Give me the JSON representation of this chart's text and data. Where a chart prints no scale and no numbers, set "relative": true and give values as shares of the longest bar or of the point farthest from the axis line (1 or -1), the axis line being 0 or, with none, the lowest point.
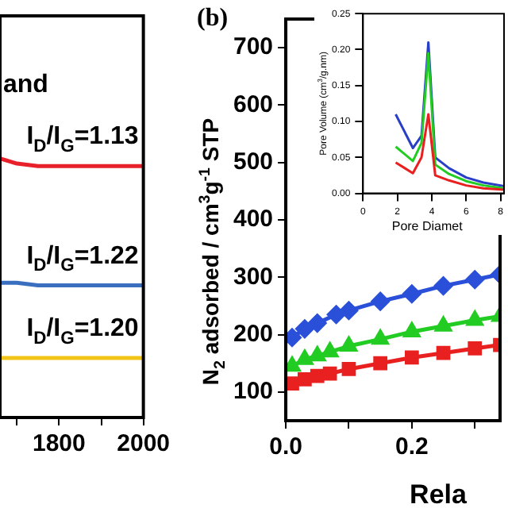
{
  "chart_data": [
    {
      "type": "line",
      "relative": true,
      "x": [
        1660,
        1700,
        1750,
        1800,
        1900,
        2000
      ],
      "xlim": [
        1660,
        2000
      ],
      "xticks": [
        {
          "value": 1700,
          "label": null
        },
        1800,
        {
          "value": 1900,
          "label": null
        },
        2000
      ],
      "tick_labels": "x",
      "grid": false,
      "legend": false,
      "marker": "none",
      "series": [
        {
          "color": "#e8202a",
          "values": [
            1,
            0.98,
            0.97,
            0.97,
            0.97,
            0.97
          ]
        },
        {
          "color": "#3a6fc0",
          "values": [
            0.52,
            0.52,
            0.51,
            0.51,
            0.51,
            0.51
          ]
        },
        {
          "color": "#f2c418",
          "values": [
            0.23,
            0.23,
            0.23,
            0.23,
            0.23,
            0.23
          ]
        }
      ],
      "annotations": [
        "and",
        "I$_{D}$/I$_{G}$=1.13",
        "I$_{D}$/I$_{G}$=1.22",
        "I$_{D}$/I$_{G}$=1.20"
      ]
    },
    {
      "type": "line",
      "title": "(b)",
      "xlabel": "Rela",
      "ylabel": "N$_{2}$ adsorbed / cm$^{3}$g$^{-1}$ STP",
      "xlim": [
        0,
        0.34
      ],
      "xticks": [
        {
          "value": 0,
          "label": "0.0"
        },
        {
          "value": 0.1,
          "label": null
        },
        {
          "value": 0.2,
          "label": "0.2"
        },
        {
          "value": 0.3,
          "label": null
        }
      ],
      "ylim": [
        50,
        750
      ],
      "yticks": [
        100,
        200,
        300,
        400,
        500,
        600,
        700
      ],
      "grid": false,
      "legend": false,
      "series": [
        {
          "color": "#2a4fd8",
          "marker": "diamond",
          "x": [
            0.01,
            0.03,
            0.05,
            0.08,
            0.1,
            0.15,
            0.2,
            0.25,
            0.3,
            0.34
          ],
          "values": [
            195,
            210,
            220,
            235,
            242,
            258,
            271,
            285,
            296,
            305
          ]
        },
        {
          "color": "#22cc22",
          "marker": "triangle",
          "x": [
            0.01,
            0.03,
            0.05,
            0.07,
            0.1,
            0.15,
            0.2,
            0.25,
            0.3,
            0.34
          ],
          "values": [
            145,
            157,
            163,
            170,
            180,
            192,
            205,
            215,
            225,
            232
          ]
        },
        {
          "color": "#e82020",
          "marker": "square",
          "x": [
            0.01,
            0.03,
            0.05,
            0.07,
            0.1,
            0.15,
            0.2,
            0.25,
            0.3,
            0.34
          ],
          "values": [
            115,
            122,
            128,
            132,
            140,
            150,
            160,
            168,
            176,
            182
          ]
        }
      ]
    },
    {
      "type": "line",
      "xlabel": "Pore Diamet",
      "ylabel": "Pore Volume (cm$^{3}$/g.nm)",
      "xlim": [
        0,
        8.2
      ],
      "xticks": [
        0,
        2,
        4,
        6,
        8
      ],
      "ylim": [
        0,
        0.25
      ],
      "yticks": [
        {
          "value": 0,
          "label": "0.00"
        },
        {
          "value": 0.05,
          "label": "0.05"
        },
        {
          "value": 0.1,
          "label": "0.10"
        },
        {
          "value": 0.15,
          "label": "0.15"
        },
        {
          "value": 0.2,
          "label": "0.20"
        },
        {
          "value": 0.25,
          "label": "0.25"
        }
      ],
      "grid": false,
      "legend": false,
      "marker": "none",
      "series": [
        {
          "color": "#2a3fc8",
          "x": [
            1.9,
            2.9,
            3.4,
            3.8,
            4.2,
            5,
            6,
            7,
            8.2
          ],
          "values": [
            0.11,
            0.063,
            0.08,
            0.21,
            0.05,
            0.035,
            0.022,
            0.015,
            0.01
          ]
        },
        {
          "color": "#22cc22",
          "x": [
            1.9,
            2.9,
            3.4,
            3.8,
            4.2,
            5,
            6,
            7,
            8.2
          ],
          "values": [
            0.065,
            0.045,
            0.07,
            0.195,
            0.04,
            0.027,
            0.017,
            0.011,
            0.007
          ]
        },
        {
          "color": "#e82020",
          "x": [
            1.9,
            2.9,
            3.4,
            3.8,
            4.2,
            5,
            6,
            7,
            8.2
          ],
          "values": [
            0.043,
            0.028,
            0.05,
            0.11,
            0.025,
            0.018,
            0.011,
            0.007,
            0.005
          ]
        }
      ]
    }
  ]
}
